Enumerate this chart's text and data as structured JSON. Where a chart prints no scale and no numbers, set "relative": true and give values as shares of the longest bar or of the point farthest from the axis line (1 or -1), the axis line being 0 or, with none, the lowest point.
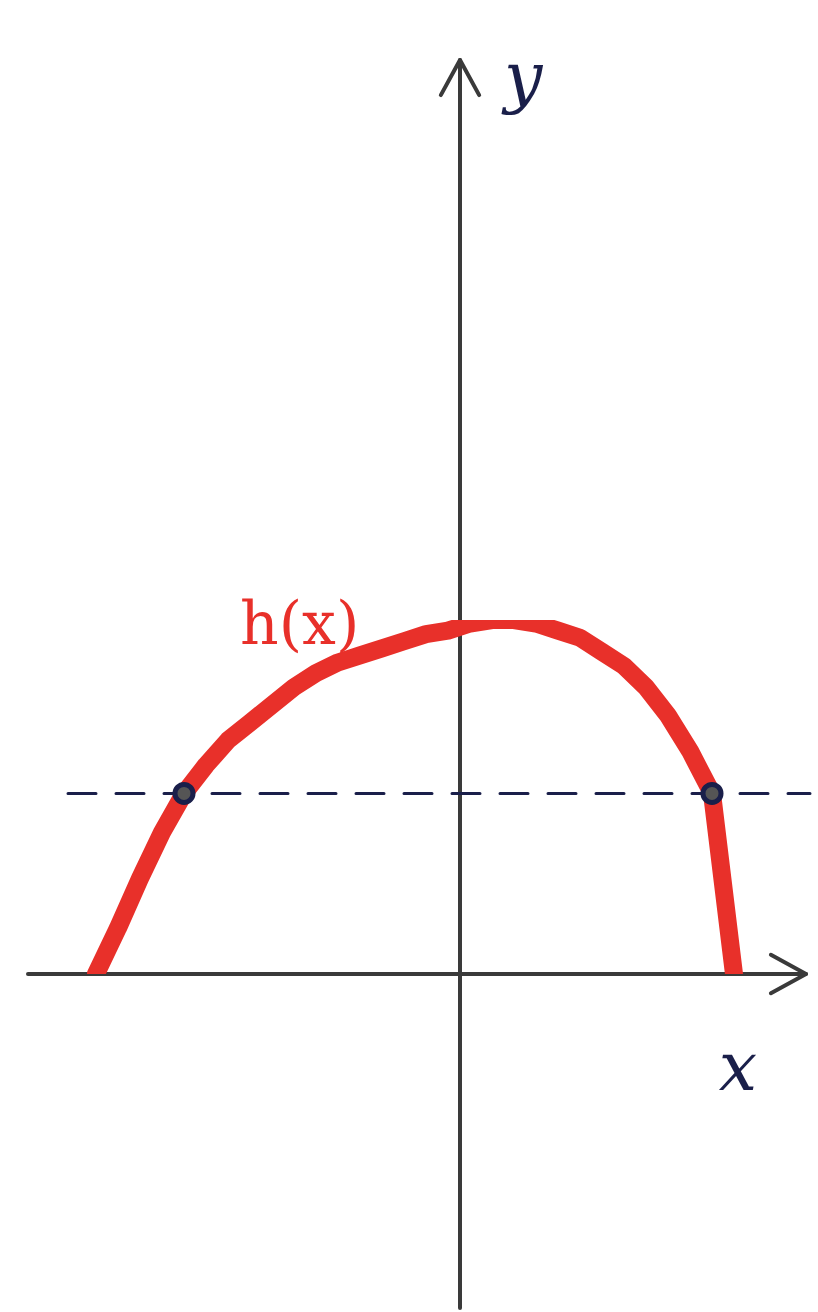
{
  "chart_data": {
    "type": "line",
    "relative": true,
    "xlabel": "x",
    "annotations": [
      "h(x)",
      "y"
    ],
    "categories": [
      null,
      null,
      null,
      null,
      null,
      null,
      null,
      null,
      null,
      null,
      null,
      null,
      null,
      null,
      null,
      null,
      null,
      null,
      null,
      null,
      null,
      null,
      null,
      null,
      null,
      null,
      null,
      null,
      null,
      null
    ],
    "series": [
      {
        "color": "#e8302a",
        "values": [
          0,
          0.13,
          0.27,
          0.4,
          0.51,
          0.59,
          0.66,
          0.71,
          0.76,
          0.81,
          0.85,
          0.88,
          0.9,
          0.92,
          0.94,
          0.96,
          0.97,
          0.99,
          1.0,
          1.0,
          0.99,
          0.97,
          0.95,
          0.91,
          0.87,
          0.81,
          0.73,
          0.63,
          0.51,
          0
        ]
      }
    ],
    "ref_lines": [
      {
        "axis": "y",
        "value": 0.51,
        "color": "#1a1f4a",
        "line_style": "dashed"
      }
    ],
    "legend": false
  }
}
